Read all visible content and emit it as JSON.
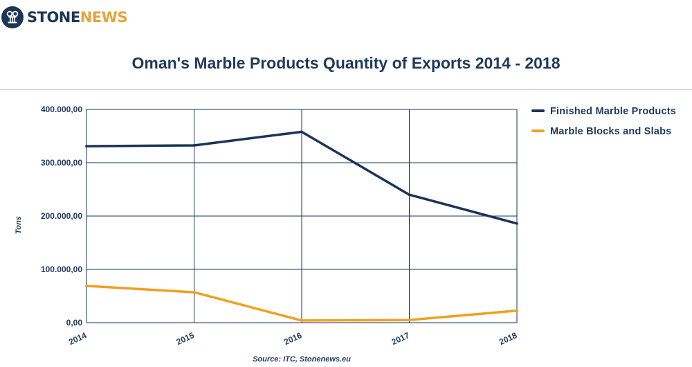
{
  "brand": {
    "name_part1": "STONE",
    "name_part2": "NEWS",
    "color_dark": "#1d3557",
    "color_accent": "#e8a33c"
  },
  "chart_data": {
    "type": "line",
    "title": "Oman's Marble Products Quantity of Exports 2014 - 2018",
    "ylabel": "Tons",
    "xlabel": "",
    "categories": [
      "2014",
      "2015",
      "2016",
      "2017",
      "2018"
    ],
    "ylim": [
      0,
      400000
    ],
    "y_ticks": [
      {
        "value": 0,
        "label": "0,00"
      },
      {
        "value": 100000,
        "label": "100.000,00"
      },
      {
        "value": 200000,
        "label": "200.000,00"
      },
      {
        "value": 300000,
        "label": "300.000,00"
      },
      {
        "value": 400000,
        "label": "400.000,00"
      }
    ],
    "series": [
      {
        "name": "Finished Marble Products",
        "color": "#1b3358",
        "values": [
          331000,
          332500,
          358000,
          240000,
          186000
        ]
      },
      {
        "name": "Marble Blocks and Slabs",
        "color": "#f0a020",
        "values": [
          69000,
          57000,
          4000,
          5000,
          22500
        ]
      }
    ],
    "grid": true,
    "legend_position": "top-right",
    "source": "Source: ITC, Stonenews.eu"
  }
}
